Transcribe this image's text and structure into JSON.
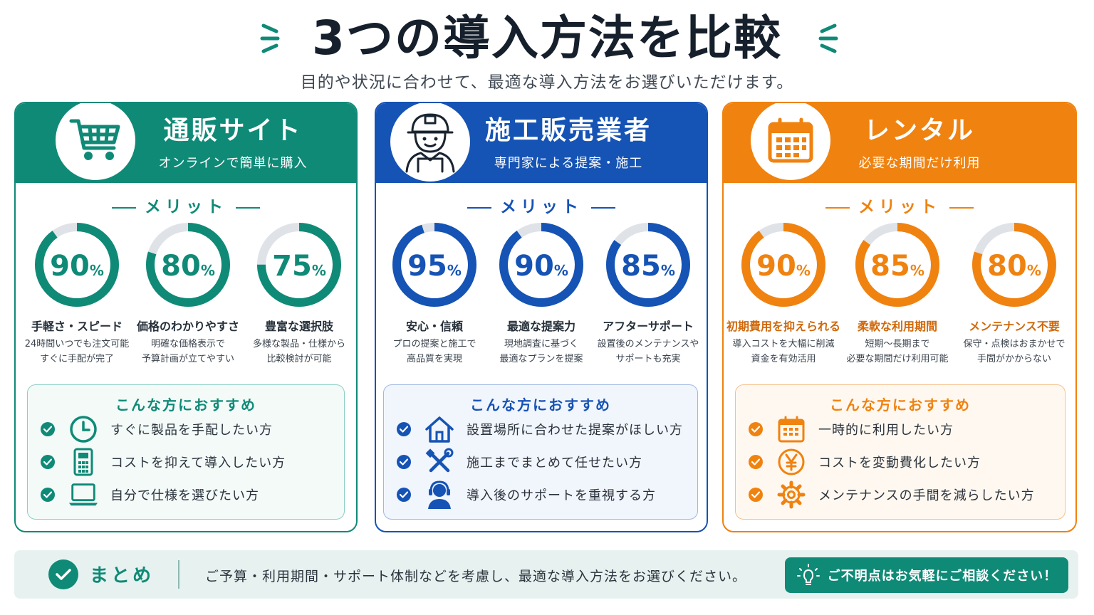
{
  "page": {
    "title": "3つの導入方法を比較",
    "subtitle": "目的や状況に合わせて、最適な導入方法をお選びいただけます。"
  },
  "colors": {
    "teal": "#0f8a77",
    "blue": "#1553b5",
    "orange": "#f0820f",
    "ring_track": "#dfe3e8"
  },
  "cards": [
    {
      "title": "通販サイト",
      "subtitle": "オンラインで簡単に購入",
      "icon": "shopping-cart-icon",
      "merit_heading": "メリット",
      "merits": [
        {
          "percent": 90,
          "value_label": "90",
          "unit": "%",
          "title": "手軽さ・スピード",
          "desc1": "24時間いつでも注文可能",
          "desc2": "すぐに手配が完了"
        },
        {
          "percent": 80,
          "value_label": "80",
          "unit": "%",
          "title": "価格のわかりやすさ",
          "desc1": "明確な価格表示で",
          "desc2": "予算計画が立てやすい"
        },
        {
          "percent": 75,
          "value_label": "75",
          "unit": "%",
          "title": "豊富な選択肢",
          "desc1": "多様な製品・仕様から",
          "desc2": "比較検討が可能"
        }
      ],
      "rec_heading": "こんな方におすすめ",
      "recs": [
        {
          "icon": "clock-icon",
          "text": "すぐに製品を手配したい方"
        },
        {
          "icon": "calculator-icon",
          "text": "コストを抑えて導入したい方"
        },
        {
          "icon": "laptop-icon",
          "text": "自分で仕様を選びたい方"
        }
      ]
    },
    {
      "title": "施工販売業者",
      "subtitle": "専門家による提案・施工",
      "icon": "construction-worker-icon",
      "merit_heading": "メリット",
      "merits": [
        {
          "percent": 95,
          "value_label": "95",
          "unit": "%",
          "title": "安心・信頼",
          "desc1": "プロの提案と施工で",
          "desc2": "高品質を実現"
        },
        {
          "percent": 90,
          "value_label": "90",
          "unit": "%",
          "title": "最適な提案力",
          "desc1": "現地調査に基づく",
          "desc2": "最適なプランを提案"
        },
        {
          "percent": 85,
          "value_label": "85",
          "unit": "%",
          "title": "アフターサポート",
          "desc1": "設置後のメンテナンスや",
          "desc2": "サポートも充実"
        }
      ],
      "rec_heading": "こんな方におすすめ",
      "recs": [
        {
          "icon": "house-icon",
          "text": "設置場所に合わせた提案がほしい方"
        },
        {
          "icon": "tools-icon",
          "text": "施工までまとめて任せたい方"
        },
        {
          "icon": "support-headset-icon",
          "text": "導入後のサポートを重視する方"
        }
      ]
    },
    {
      "title": "レンタル",
      "subtitle": "必要な期間だけ利用",
      "icon": "calendar-icon",
      "merit_heading": "メリット",
      "merits": [
        {
          "percent": 90,
          "value_label": "90",
          "unit": "%",
          "title": "初期費用を抑えられる",
          "desc1": "導入コストを大幅に削減",
          "desc2": "資金を有効活用"
        },
        {
          "percent": 85,
          "value_label": "85",
          "unit": "%",
          "title": "柔軟な利用期間",
          "desc1": "短期〜長期まで",
          "desc2": "必要な期間だけ利用可能"
        },
        {
          "percent": 80,
          "value_label": "80",
          "unit": "%",
          "title": "メンテナンス不要",
          "desc1": "保守・点検はおまかせで",
          "desc2": "手間がかからない"
        }
      ],
      "rec_heading": "こんな方におすすめ",
      "recs": [
        {
          "icon": "calendar-icon",
          "text": "一時的に利用したい方"
        },
        {
          "icon": "yen-icon",
          "text": "コストを変動費化したい方"
        },
        {
          "icon": "gear-icon",
          "text": "メンテナンスの手間を減らしたい方"
        }
      ]
    }
  ],
  "summary": {
    "label": "まとめ",
    "text": "ご予算・利用期間・サポート体制などを考慮し、最適な導入方法をお選びください。",
    "button": "ご不明点はお気軽にご相談ください！"
  }
}
